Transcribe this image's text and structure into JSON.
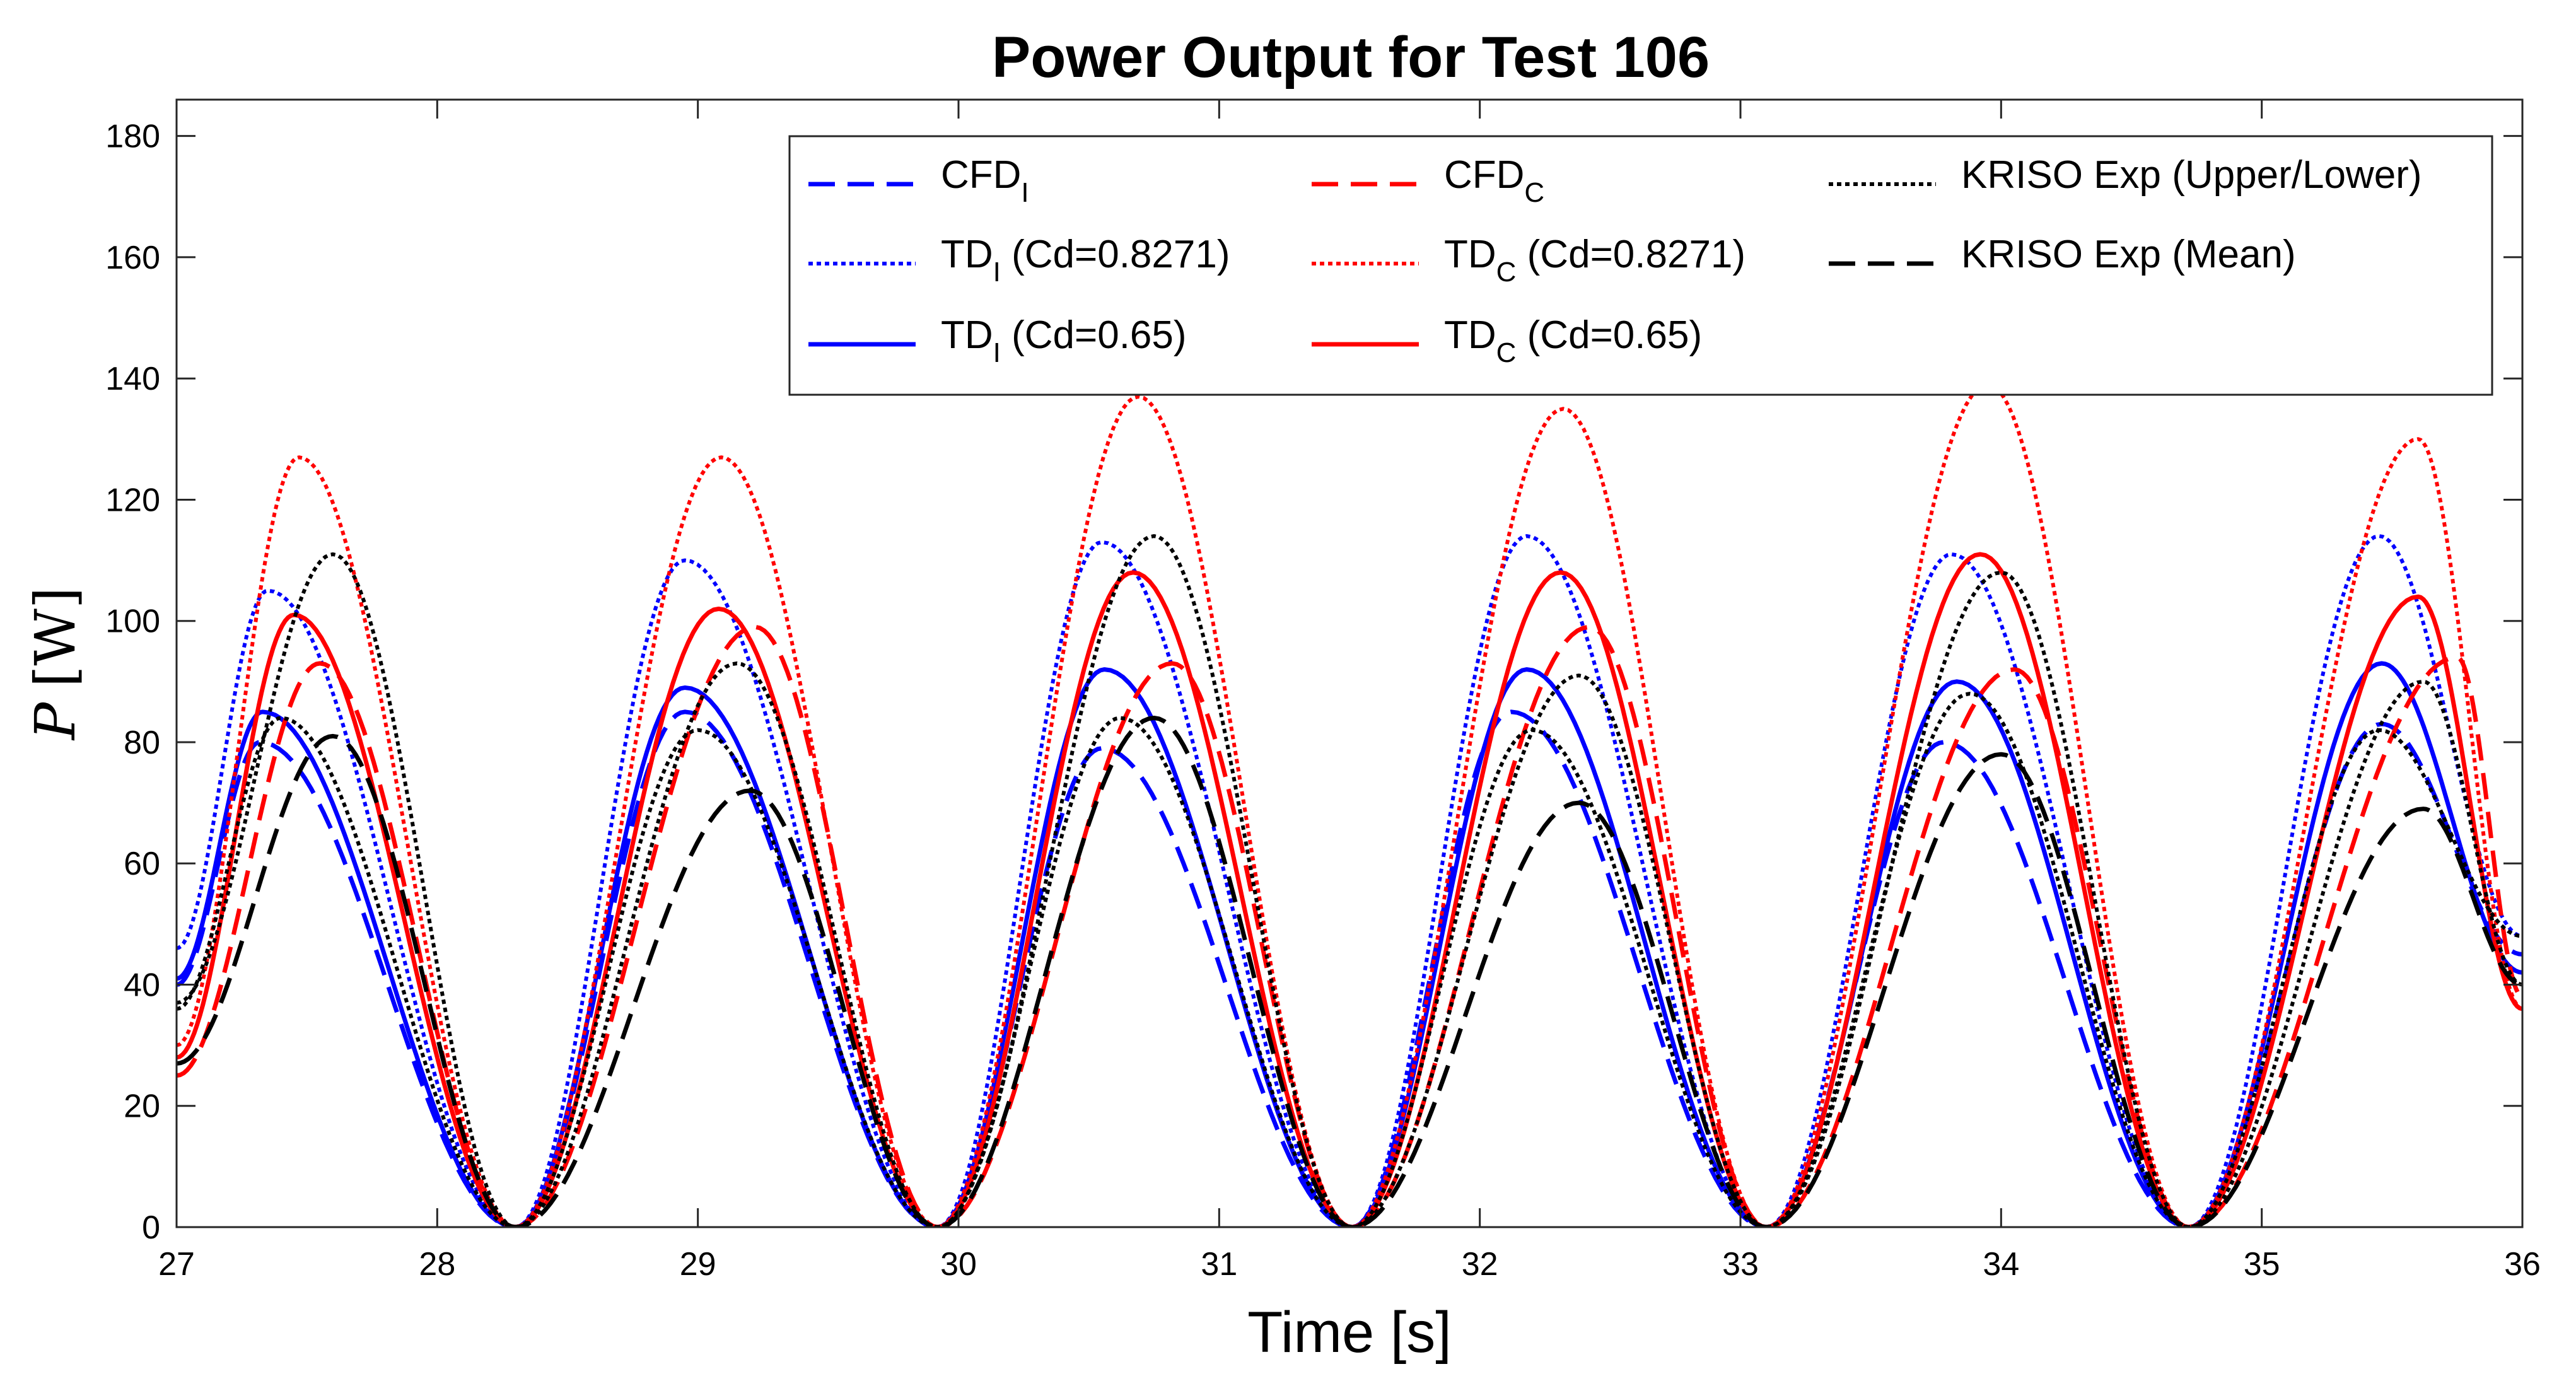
{
  "chart_data": {
    "type": "line",
    "title": "Power Output for Test 106",
    "xlabel": "Time [s]",
    "ylabel_symbol": "P",
    "ylabel_unit": "[W]",
    "xlim": [
      27,
      36
    ],
    "ylim": [
      0,
      186
    ],
    "xticks": [
      27,
      28,
      29,
      30,
      31,
      32,
      33,
      34,
      35,
      36
    ],
    "yticks": [
      0,
      20,
      40,
      60,
      80,
      100,
      120,
      140,
      160,
      180
    ],
    "grid": false,
    "legend_placement": "top-right",
    "troughs": [
      28.3,
      29.92,
      31.51,
      33.1,
      34.72
    ],
    "series": [
      {
        "id": "cfd_i",
        "legend_main": "CFD",
        "legend_sub": "I",
        "legend_rest": "",
        "color": "#0000ff",
        "dash": "dashed",
        "start": 40,
        "end": 45,
        "peaks": [
          {
            "t": 27.32,
            "p": 80
          },
          {
            "t": 28.95,
            "p": 85
          },
          {
            "t": 30.55,
            "p": 79
          },
          {
            "t": 32.12,
            "p": 85
          },
          {
            "t": 33.78,
            "p": 80
          },
          {
            "t": 35.46,
            "p": 83
          }
        ]
      },
      {
        "id": "td_i_0827",
        "legend_main": "TD",
        "legend_sub": "I",
        "legend_rest": " (Cd=0.8271)",
        "color": "#0000ff",
        "dash": "dotted",
        "start": 46,
        "end": 48,
        "peaks": [
          {
            "t": 27.35,
            "p": 105
          },
          {
            "t": 28.95,
            "p": 110
          },
          {
            "t": 30.55,
            "p": 113
          },
          {
            "t": 32.18,
            "p": 114
          },
          {
            "t": 33.81,
            "p": 111
          },
          {
            "t": 35.45,
            "p": 114
          }
        ]
      },
      {
        "id": "td_i_065",
        "legend_main": "TD",
        "legend_sub": "I",
        "legend_rest": " (Cd=0.65)",
        "color": "#0000ff",
        "dash": "solid",
        "start": 41,
        "end": 42,
        "peaks": [
          {
            "t": 27.33,
            "p": 85
          },
          {
            "t": 28.95,
            "p": 89
          },
          {
            "t": 30.56,
            "p": 92
          },
          {
            "t": 32.18,
            "p": 92
          },
          {
            "t": 33.83,
            "p": 90
          },
          {
            "t": 35.46,
            "p": 93
          }
        ]
      },
      {
        "id": "cfd_c",
        "legend_main": "CFD",
        "legend_sub": "C",
        "legend_rest": "",
        "color": "#ff0000",
        "dash": "dashed",
        "start": 25,
        "end": 38,
        "peaks": [
          {
            "t": 27.55,
            "p": 93
          },
          {
            "t": 29.22,
            "p": 99
          },
          {
            "t": 30.82,
            "p": 93
          },
          {
            "t": 32.42,
            "p": 99
          },
          {
            "t": 34.05,
            "p": 92
          },
          {
            "t": 35.75,
            "p": 94
          }
        ]
      },
      {
        "id": "td_c_0827",
        "legend_main": "TD",
        "legend_sub": "C",
        "legend_rest": " (Cd=0.8271)",
        "color": "#ff0000",
        "dash": "dotted",
        "start": 30,
        "end": 36,
        "peaks": [
          {
            "t": 27.47,
            "p": 127
          },
          {
            "t": 29.09,
            "p": 127
          },
          {
            "t": 30.69,
            "p": 137
          },
          {
            "t": 32.32,
            "p": 135
          },
          {
            "t": 33.95,
            "p": 139
          },
          {
            "t": 35.6,
            "p": 130
          }
        ]
      },
      {
        "id": "td_c_065",
        "legend_main": "TD",
        "legend_sub": "C",
        "legend_rest": " (Cd=0.65)",
        "color": "#ff0000",
        "dash": "solid",
        "start": 28,
        "end": 36,
        "peaks": [
          {
            "t": 27.45,
            "p": 101
          },
          {
            "t": 29.08,
            "p": 102
          },
          {
            "t": 30.67,
            "p": 108
          },
          {
            "t": 32.31,
            "p": 108
          },
          {
            "t": 33.92,
            "p": 111
          },
          {
            "t": 35.6,
            "p": 104
          }
        ]
      },
      {
        "id": "kriso_ul",
        "legend_main": "KRISO Exp (Upper/Lower)",
        "legend_sub": "",
        "legend_rest": "",
        "color": "#000000",
        "dash": "dotted",
        "start": 37,
        "end": 40,
        "peaks": [
          {
            "t": 27.6,
            "p": 111
          },
          {
            "t": 29.15,
            "p": 93
          },
          {
            "t": 30.75,
            "p": 114
          },
          {
            "t": 32.38,
            "p": 91
          },
          {
            "t": 34.0,
            "p": 108
          },
          {
            "t": 35.62,
            "p": 90
          }
        ]
      },
      {
        "id": "kriso_ul_lower",
        "legend_main": "",
        "legend_sub": "",
        "legend_rest": "",
        "color": "#000000",
        "dash": "dotted",
        "start": 36,
        "end": 48,
        "peaks": [
          {
            "t": 27.4,
            "p": 84
          },
          {
            "t": 29.0,
            "p": 82
          },
          {
            "t": 30.62,
            "p": 84
          },
          {
            "t": 32.2,
            "p": 82
          },
          {
            "t": 33.88,
            "p": 88
          },
          {
            "t": 35.45,
            "p": 82
          }
        ]
      },
      {
        "id": "kriso_mean",
        "legend_main": "KRISO Exp (Mean)",
        "legend_sub": "",
        "legend_rest": "",
        "color": "#000000",
        "dash": "dashed",
        "start": 27,
        "end": 40,
        "peaks": [
          {
            "t": 27.6,
            "p": 81
          },
          {
            "t": 29.2,
            "p": 72
          },
          {
            "t": 30.75,
            "p": 84
          },
          {
            "t": 32.38,
            "p": 70
          },
          {
            "t": 34.0,
            "p": 78
          },
          {
            "t": 35.62,
            "p": 69
          }
        ]
      }
    ]
  }
}
